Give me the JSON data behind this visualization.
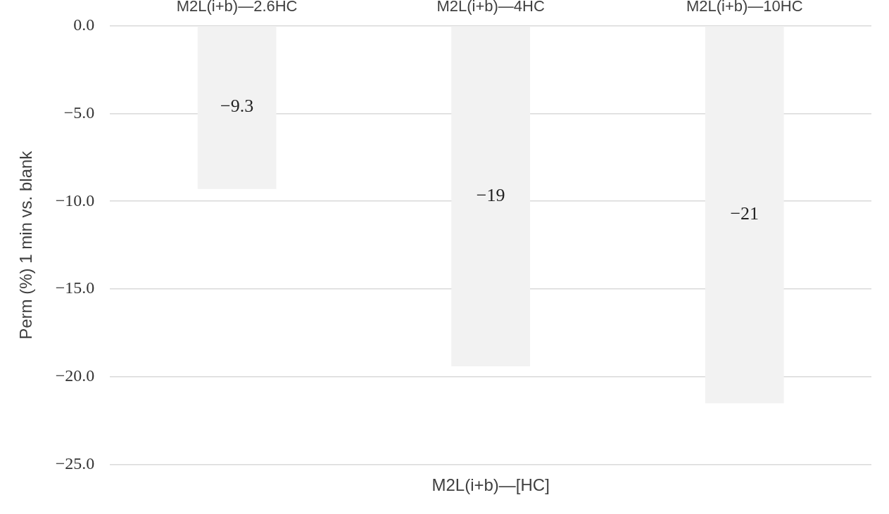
{
  "chart_data": {
    "type": "bar",
    "xlabel": "M2L(i+b)—[HC]",
    "ylabel": "Perm (%) 1 min vs. blank",
    "categories": [
      "M2L(i+b)—2.6HC",
      "M2L(i+b)—4HC",
      "M2L(i+b)—10HC"
    ],
    "values": [
      -9.3,
      -19.4,
      -21.5
    ],
    "value_labels": [
      "−9.3",
      "−19",
      "−21"
    ],
    "color": "#f2f2f2",
    "ylim": [
      -25,
      0
    ],
    "yticks": [
      {
        "value": 0,
        "label": "0.0"
      },
      {
        "value": -5,
        "label": "−5.0"
      },
      {
        "value": -10,
        "label": "−10.0"
      },
      {
        "value": -15,
        "label": "−15.0"
      },
      {
        "value": -20,
        "label": "−20.0"
      },
      {
        "value": -25,
        "label": "−25.0"
      }
    ],
    "grid": "y",
    "legend": false
  }
}
